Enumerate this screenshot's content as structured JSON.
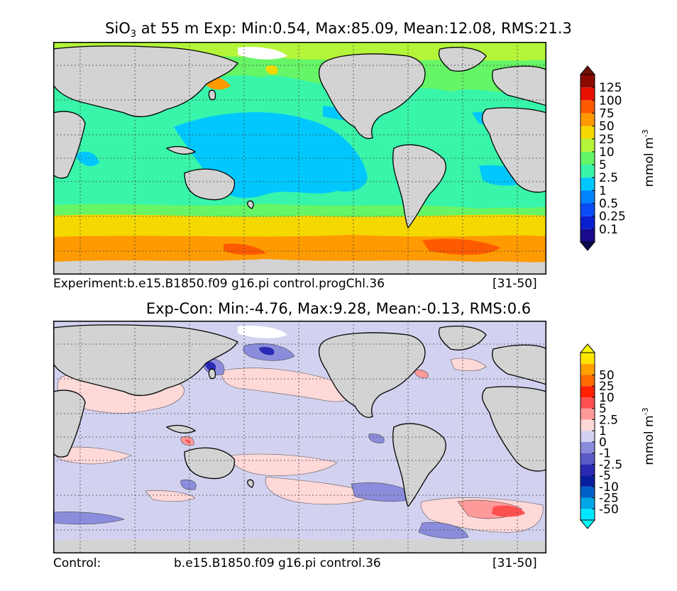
{
  "panels": [
    {
      "title_prefix": "SiO",
      "title_sub": "3",
      "title_rest": " at 55 m Exp: Min:0.54, Max:85.09, Mean:12.08, RMS:21.3",
      "caption_left": "Experiment:b.e15.B1850.f09 g16.pi control.progChl.36",
      "caption_mid": "",
      "caption_right": "[31-50]",
      "colorbar": {
        "unit": "mmol m",
        "unit_exp": "-3",
        "levels": [
          "0.1",
          "0.25",
          "0.5",
          "1",
          "2.5",
          "5",
          "10",
          "25",
          "50",
          "75",
          "100",
          "125"
        ],
        "colors": [
          "#1a0b8c",
          "#0a1fd0",
          "#0a4cf5",
          "#0083ff",
          "#00c8ff",
          "#38f5a9",
          "#66f566",
          "#b4f53a",
          "#f5d800",
          "#ff9a00",
          "#ff5a00",
          "#e81000",
          "#8a0a00"
        ],
        "under_color": "#0a0a50",
        "over_color": "#701000"
      }
    },
    {
      "title_prefix": "Exp-Con: Min:-4.76, Max:9.28, Mean:-0.13, RMS:0.6",
      "title_sub": "",
      "title_rest": "",
      "caption_left": "Control:",
      "caption_mid": "b.e15.B1850.f09 g16.pi control.36",
      "caption_right": "[31-50]",
      "colorbar": {
        "unit": "mmol m",
        "unit_exp": "-3",
        "levels": [
          "-50",
          "-25",
          "-10",
          "-5",
          "-2.5",
          "-1",
          "0",
          "1",
          "2.5",
          "5",
          "10",
          "25",
          "50"
        ],
        "colors": [
          "#00e6ff",
          "#00a6e6",
          "#0060c8",
          "#0a1e9e",
          "#2a2ab4",
          "#5a5ac8",
          "#8c8cdc",
          "#d2d2f0",
          "#ffd8d8",
          "#ff9a9a",
          "#ff5050",
          "#ff2000",
          "#ff6a00",
          "#ffa000",
          "#ffe600"
        ],
        "under_color": "#00ffff",
        "over_color": "#ffff00"
      }
    }
  ],
  "chart_data": [
    {
      "type": "heatmap",
      "title": "SiO3 at 55 m Exp: Min:0.54, Max:85.09, Mean:12.08, RMS:21.3",
      "variable": "SiO3",
      "depth": "55 m",
      "stats": {
        "min": 0.54,
        "max": 85.09,
        "mean": 12.08,
        "rms": 21.3
      },
      "colorbar_levels": [
        0.1,
        0.25,
        0.5,
        1,
        2.5,
        5,
        10,
        25,
        50,
        75,
        100,
        125
      ],
      "colorbar_label": "mmol m^-3",
      "grid": true,
      "experiment": "b.e15.B1850.f09 g16.pi control.progChl.36",
      "years": "[31-50]"
    },
    {
      "type": "heatmap",
      "title": "Exp-Con: Min:-4.76, Max:9.28, Mean:-0.13, RMS:0.6",
      "stats": {
        "min": -4.76,
        "max": 9.28,
        "mean": -0.13,
        "rms": 0.6
      },
      "colorbar_levels": [
        -50,
        -25,
        -10,
        -5,
        -2.5,
        -1,
        0,
        1,
        2.5,
        5,
        10,
        25,
        50
      ],
      "colorbar_label": "mmol m^-3",
      "grid": true,
      "control": "b.e15.B1850.f09 g16.pi control.36",
      "years": "[31-50]"
    }
  ]
}
